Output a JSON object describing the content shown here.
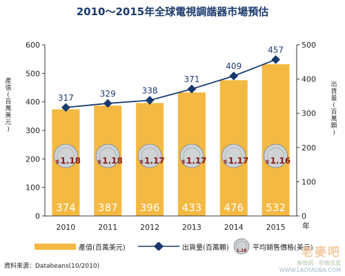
{
  "title": "2010～2015年全球電視調諧器市場預估",
  "chart_data": {
    "type": "bar",
    "categories": [
      "2010",
      "2011",
      "2012",
      "2013",
      "2014",
      "2015"
    ],
    "x_unit": "年",
    "series": [
      {
        "name": "產值(百萬美元)",
        "type": "bar",
        "axis": "left",
        "color": "#f4b942",
        "values": [
          374,
          387,
          396,
          433,
          476,
          532
        ]
      },
      {
        "name": "出貨量(百萬顆)",
        "type": "line",
        "axis": "right",
        "color": "#1a3a6e",
        "values": [
          317,
          329,
          338,
          371,
          409,
          457
        ]
      },
      {
        "name": "平均銷售價格(美元)",
        "type": "annotation",
        "values": [
          1.18,
          1.18,
          1.17,
          1.17,
          1.17,
          1.16
        ]
      }
    ],
    "left_axis": {
      "label": "產值(百萬美元)",
      "ylim": [
        0,
        600
      ],
      "ticks": [
        "0",
        "100",
        "200",
        "300",
        "400",
        "500",
        "600"
      ]
    },
    "right_axis": {
      "label": "出貨量(百萬顆)",
      "ylim": [
        0,
        500
      ],
      "ticks": [
        "0",
        "100",
        "200",
        "300",
        "400",
        "500"
      ]
    },
    "price_prefix": "$",
    "legend_position": "bottom",
    "grid": false
  },
  "legend": {
    "bar_label": "產值(百萬美元)",
    "line_label": "出貨量(百萬顆)",
    "coin_label": "平均銷售價格(美元)",
    "coin_value": "1.18"
  },
  "source": "資料來源：Databeans(10/2010)",
  "watermark": {
    "logo": "老麥吧",
    "tagline": "集微网 · 积微成著",
    "url": "WWW.LAOYAOBA.COM"
  },
  "colors": {
    "bar": "#f4b942",
    "line": "#1a3a6e",
    "price": "#8b1a1a",
    "title": "#1a3a6e"
  }
}
